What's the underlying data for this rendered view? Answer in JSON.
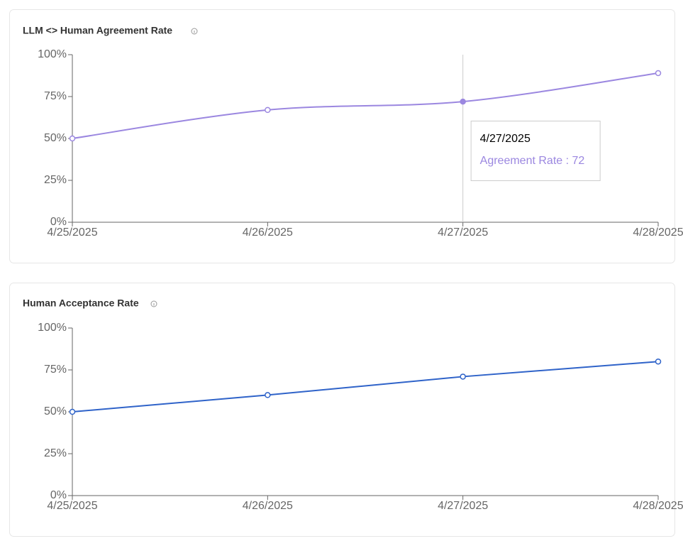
{
  "chart_data": [
    {
      "type": "line",
      "title": "LLM <> Human Agreement Rate",
      "smooth": true,
      "categories": [
        "4/25/2025",
        "4/26/2025",
        "4/27/2025",
        "4/28/2025"
      ],
      "series": [
        {
          "name": "Agreement Rate",
          "color": "#9b87e0",
          "values": [
            50,
            67,
            72,
            89
          ]
        }
      ],
      "ylim": [
        0,
        100
      ],
      "yticks": [
        {
          "value": 0,
          "label": "0%"
        },
        {
          "value": 25,
          "label": "25%"
        },
        {
          "value": 50,
          "label": "50%"
        },
        {
          "value": 75,
          "label": "75%"
        },
        {
          "value": 100,
          "label": "100%"
        }
      ],
      "tooltip": {
        "title": "4/27/2025",
        "label": "Agreement Rate : 72"
      }
    },
    {
      "type": "line",
      "title": "Human Acceptance Rate",
      "smooth": false,
      "categories": [
        "4/25/2025",
        "4/26/2025",
        "4/27/2025",
        "4/28/2025"
      ],
      "series": [
        {
          "name": "Acceptance Rate",
          "color": "#2f63c9",
          "values": [
            50,
            60,
            71,
            80
          ]
        }
      ],
      "ylim": [
        0,
        100
      ],
      "yticks": [
        {
          "value": 0,
          "label": "0%"
        },
        {
          "value": 25,
          "label": "25%"
        },
        {
          "value": 50,
          "label": "50%"
        },
        {
          "value": 75,
          "label": "75%"
        },
        {
          "value": 100,
          "label": "100%"
        }
      ]
    }
  ]
}
